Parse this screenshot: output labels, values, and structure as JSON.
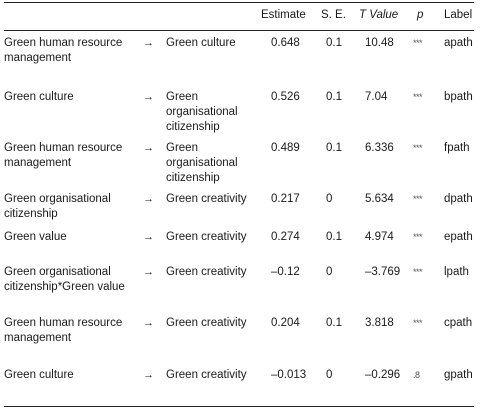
{
  "headers": {
    "estimate": "Estimate",
    "se": "S. E.",
    "t_value": "T Value",
    "p": "p",
    "label": "Label"
  },
  "rows": [
    {
      "from": "Green human resource management",
      "arrow": "→",
      "to": "Green culture",
      "estimate": "0.648",
      "se": "0.1",
      "t": "10.48",
      "p": "***",
      "label": "apath"
    },
    {
      "from": "Green culture",
      "arrow": "→",
      "to": "Green organisational citizenship",
      "estimate": "0.526",
      "se": "0.1",
      "t": "7.04",
      "p": "***",
      "label": "bpath"
    },
    {
      "from": "Green human resource management",
      "arrow": "→",
      "to": "Green organisational citizenship",
      "estimate": "0.489",
      "se": "0.1",
      "t": "6.336",
      "p": "***",
      "label": "fpath"
    },
    {
      "from": "Green organisational citizenship",
      "arrow": "→",
      "to": "Green creativity",
      "estimate": "0.217",
      "se": "0",
      "t": "5.634",
      "p": "***",
      "label": "dpath"
    },
    {
      "from": "Green value",
      "arrow": "→",
      "to": "Green creativity",
      "estimate": "0.274",
      "se": "0.1",
      "t": "4.974",
      "p": "***",
      "label": "epath"
    },
    {
      "from": "Green organisational citizenship*Green value",
      "arrow": "→",
      "to": "Green creativity",
      "estimate": "–0.12",
      "se": "0",
      "t": "–3.769",
      "p": "***",
      "label": "lpath"
    },
    {
      "from": "Green human resource management",
      "arrow": "→",
      "to": "Green creativity",
      "estimate": "0.204",
      "se": "0.1",
      "t": "3.818",
      "p": "***",
      "label": "cpath"
    },
    {
      "from": "Green culture",
      "arrow": "→",
      "to": "Green creativity",
      "estimate": "–0.013",
      "se": "0",
      "t": "–0.296",
      "p": ".8",
      "label": "gpath"
    }
  ]
}
